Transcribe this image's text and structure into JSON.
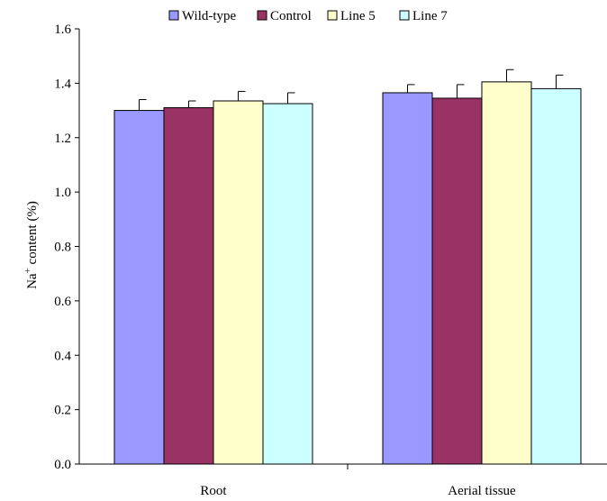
{
  "chart_data": {
    "type": "bar",
    "categories": [
      "Root",
      "Aerial tissue"
    ],
    "series": [
      {
        "name": "Wild-type",
        "values": [
          1.3,
          1.365
        ],
        "errors": [
          0.04,
          0.03
        ],
        "color": "#9999ff"
      },
      {
        "name": "Control",
        "values": [
          1.31,
          1.345
        ],
        "errors": [
          0.025,
          0.05
        ],
        "color": "#993366"
      },
      {
        "name": "Line 5",
        "values": [
          1.335,
          1.405
        ],
        "errors": [
          0.035,
          0.045
        ],
        "color": "#ffffcc"
      },
      {
        "name": "Line 7",
        "values": [
          1.325,
          1.38
        ],
        "errors": [
          0.04,
          0.05
        ],
        "color": "#ccffff"
      }
    ],
    "ylabel": {
      "base": "Na",
      "sup": "+",
      "rest": " content (%)"
    },
    "xlabel": "",
    "ylim": [
      0,
      1.6
    ],
    "yticks": [
      "0.0",
      "0.2",
      "0.4",
      "0.6",
      "0.8",
      "1.0",
      "1.2",
      "1.4",
      "1.6"
    ],
    "legend_position": "top",
    "grid": false
  }
}
